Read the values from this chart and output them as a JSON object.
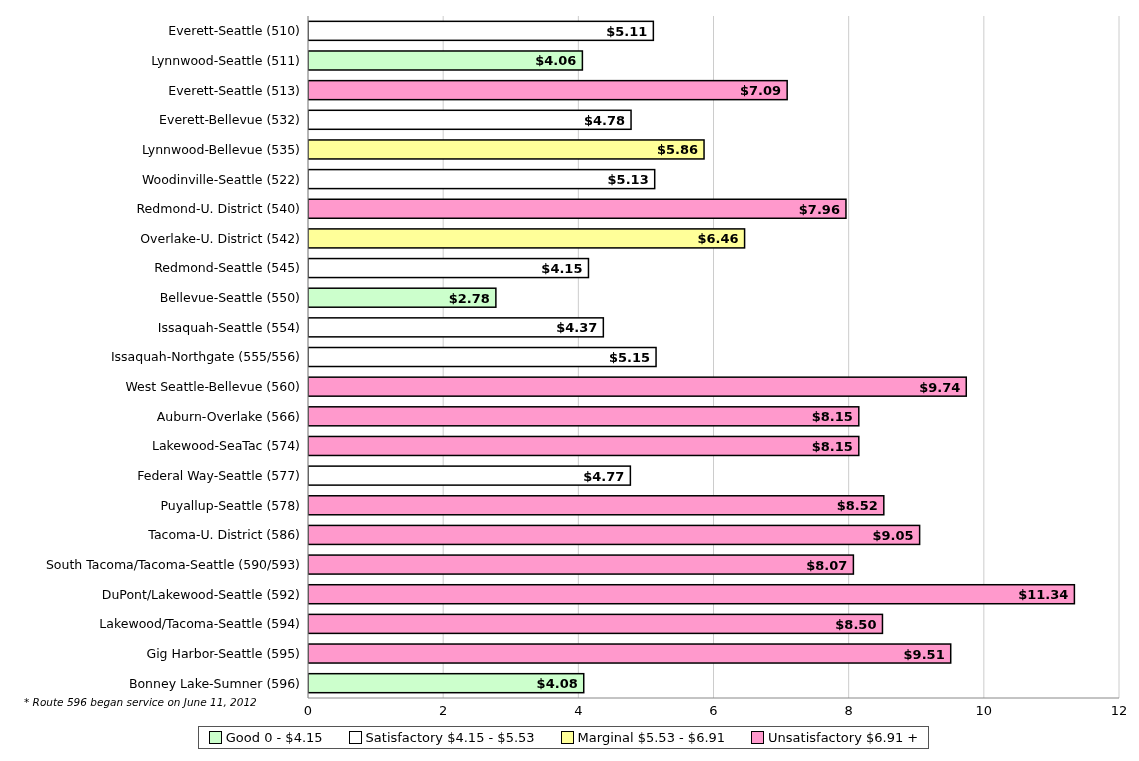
{
  "chart_data": {
    "type": "bar",
    "orientation": "horizontal",
    "stacked": true,
    "categories": [
      "Everett-Seattle (510)",
      "Lynnwood-Seattle (511)",
      "Everett-Seattle (513)",
      "Everett-Bellevue (532)",
      "Lynnwood-Bellevue (535)",
      "Woodinville-Seattle (522)",
      "Redmond-U. District (540)",
      "Overlake-U. District (542)",
      "Redmond-Seattle (545)",
      "Bellevue-Seattle (550)",
      "Issaquah-Seattle (554)",
      "Issaquah-Northgate (555/556)",
      "West Seattle-Bellevue (560)",
      "Auburn-Overlake (566)",
      "Lakewood-SeaTac (574)",
      "Federal Way-Seattle (577)",
      "Puyallup-Seattle (578)",
      "Tacoma-U. District (586)",
      "South Tacoma/Tacoma-Seattle (590/593)",
      "DuPont/Lakewood-Seattle (592)",
      "Lakewood/Tacoma-Seattle (594)",
      "Gig Harbor-Seattle (595)",
      "Bonney Lake-Sumner (596)"
    ],
    "series": [
      {
        "name": "Good 0 - $4.15",
        "color": "#ccffcc",
        "values": [
          null,
          4.06,
          null,
          null,
          null,
          null,
          null,
          null,
          null,
          2.78,
          null,
          null,
          null,
          null,
          null,
          null,
          null,
          null,
          null,
          null,
          null,
          null,
          4.08
        ],
        "value_labels": [
          null,
          "$4.06",
          null,
          null,
          null,
          null,
          null,
          null,
          null,
          "$2.78",
          null,
          null,
          null,
          null,
          null,
          null,
          null,
          null,
          null,
          null,
          null,
          null,
          "$4.08"
        ]
      },
      {
        "name": "Satisfactory $4.15 - $5.53",
        "color": "#ffffff",
        "values": [
          5.11,
          null,
          null,
          4.78,
          null,
          5.13,
          null,
          null,
          4.15,
          null,
          4.37,
          5.15,
          null,
          null,
          null,
          4.77,
          null,
          null,
          null,
          null,
          null,
          null,
          null
        ],
        "value_labels": [
          "$5.11",
          null,
          null,
          "$4.78",
          null,
          "$5.13",
          null,
          null,
          "$4.15",
          null,
          "$4.37",
          "$5.15",
          null,
          null,
          null,
          "$4.77",
          null,
          null,
          null,
          null,
          null,
          null,
          null
        ]
      },
      {
        "name": "Marginal $5.53 - $6.91",
        "color": "#ffff99",
        "values": [
          null,
          null,
          null,
          null,
          5.86,
          null,
          null,
          6.46,
          null,
          null,
          null,
          null,
          null,
          null,
          null,
          null,
          null,
          null,
          null,
          null,
          null,
          null,
          null
        ],
        "value_labels": [
          null,
          null,
          null,
          null,
          "$5.86",
          null,
          null,
          "$6.46",
          null,
          null,
          null,
          null,
          null,
          null,
          null,
          null,
          null,
          null,
          null,
          null,
          null,
          null,
          null
        ]
      },
      {
        "name": "Unsatisfactory $6.91 +",
        "color": "#ff99cc",
        "values": [
          null,
          null,
          7.09,
          null,
          null,
          null,
          7.96,
          null,
          null,
          null,
          null,
          null,
          9.74,
          8.15,
          8.15,
          null,
          8.52,
          9.05,
          8.07,
          11.34,
          8.5,
          9.51,
          null
        ],
        "value_labels": [
          null,
          null,
          "$7.09",
          null,
          null,
          null,
          "$7.96",
          null,
          null,
          null,
          null,
          null,
          "$9.74",
          "$8.15",
          "$8.15",
          null,
          "$8.52",
          "$9.05",
          "$8.07",
          "$11.34",
          "$8.50",
          "$9.51",
          null
        ]
      }
    ],
    "xlim": [
      0,
      12
    ],
    "xticks": [
      0,
      2,
      4,
      6,
      8,
      10,
      12
    ],
    "grid": "x",
    "legend": "bottom",
    "annotations": [
      "* Route 596 began service on June 11, 2012"
    ]
  }
}
